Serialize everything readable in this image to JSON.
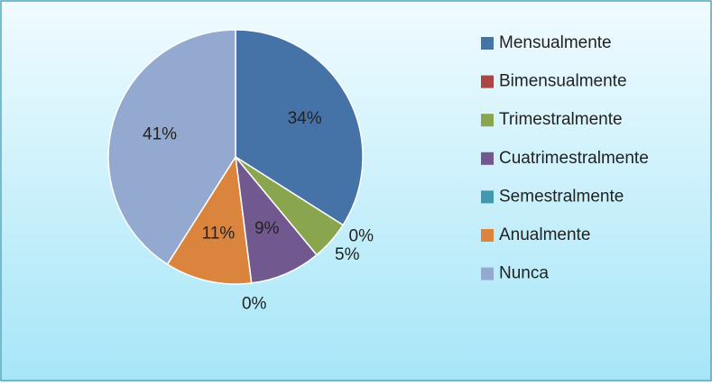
{
  "chart_data": {
    "type": "pie",
    "categories": [
      "Mensualmente",
      "Bimensualmente",
      "Trimestralmente",
      "Cuatrimestralmente",
      "Semestralmente",
      "Anualmente",
      "Nunca"
    ],
    "values": [
      34,
      0,
      5,
      9,
      0,
      11,
      41
    ],
    "value_labels": [
      "34%",
      "0%",
      "5%",
      "9%",
      "0%",
      "11%",
      "41%"
    ],
    "colors": [
      "#4572a7",
      "#aa4643",
      "#89a54e",
      "#71588f",
      "#4198af",
      "#db843d",
      "#93a9cf"
    ],
    "legend": "right"
  }
}
